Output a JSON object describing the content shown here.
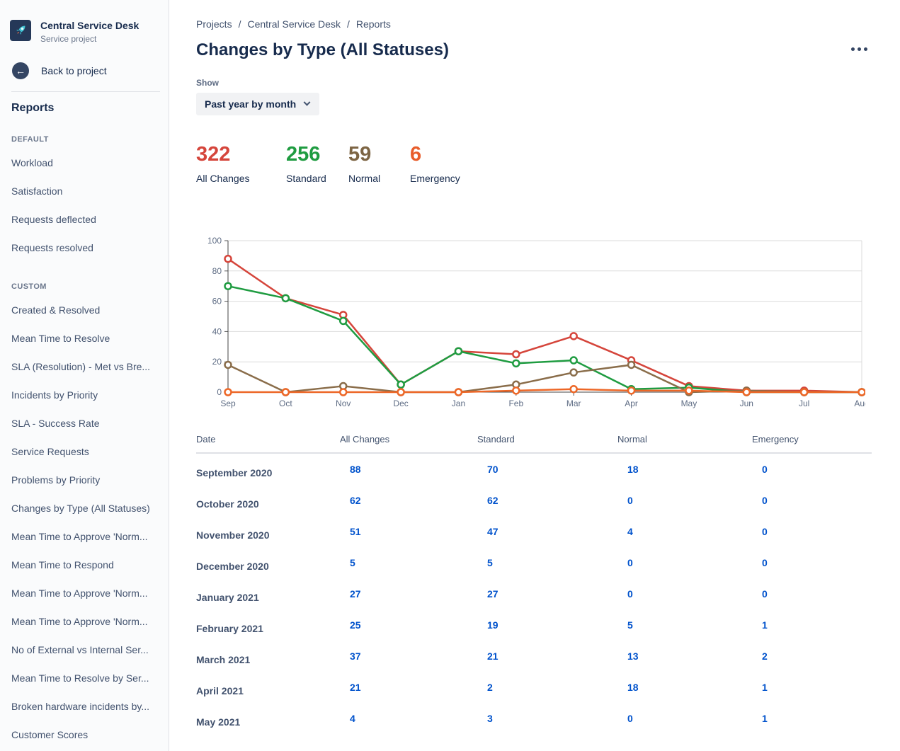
{
  "sidebar": {
    "project_name": "Central Service Desk",
    "project_type": "Service project",
    "back_label": "Back to project",
    "reports_heading": "Reports",
    "sections": [
      {
        "label": "DEFAULT",
        "items": [
          "Workload",
          "Satisfaction",
          "Requests deflected",
          "Requests resolved"
        ]
      },
      {
        "label": "CUSTOM",
        "items": [
          "Created & Resolved",
          "Mean Time to Resolve",
          "SLA (Resolution) - Met vs Bre...",
          "Incidents by Priority",
          "SLA - Success Rate",
          "Service Requests",
          "Problems by Priority",
          "Changes by Type (All Statuses)",
          "Mean Time to Approve 'Norm...",
          "Mean Time to Respond",
          "Mean Time to Approve 'Norm...",
          "Mean Time to Approve 'Norm...",
          "No of External vs Internal Ser...",
          "Mean Time to Resolve by Ser...",
          "Broken hardware incidents by...",
          "Customer Scores"
        ]
      }
    ]
  },
  "breadcrumb": [
    "Projects",
    "Central Service Desk",
    "Reports"
  ],
  "page_title": "Changes by Type (All Statuses)",
  "show": {
    "label": "Show",
    "selected": "Past year by month"
  },
  "stats": [
    {
      "value": "322",
      "label": "All Changes",
      "color": "#D5453B"
    },
    {
      "value": "256",
      "label": "Standard",
      "color": "#1F9C41"
    },
    {
      "value": "59",
      "label": "Normal",
      "color": "#7D6544"
    },
    {
      "value": "6",
      "label": "Emergency",
      "color": "#E85D2B"
    }
  ],
  "chart_data": {
    "type": "line",
    "x": [
      "Sep",
      "Oct",
      "Nov",
      "Dec",
      "Jan",
      "Feb",
      "Mar",
      "Apr",
      "May",
      "Jun",
      "Jul",
      "Aug"
    ],
    "series": [
      {
        "name": "All Changes",
        "color": "#D5453B",
        "values": [
          88,
          62,
          51,
          5,
          27,
          25,
          37,
          21,
          4,
          1,
          1,
          0
        ]
      },
      {
        "name": "Standard",
        "color": "#1F9C41",
        "values": [
          70,
          62,
          47,
          5,
          27,
          19,
          21,
          2,
          3,
          0,
          0,
          0
        ]
      },
      {
        "name": "Normal",
        "color": "#8A6D4A",
        "values": [
          18,
          0,
          4,
          0,
          0,
          5,
          13,
          18,
          0,
          1,
          0,
          0
        ]
      },
      {
        "name": "Emergency",
        "color": "#ED6727",
        "values": [
          0,
          0,
          0,
          0,
          0,
          1,
          2,
          1,
          1,
          0,
          0,
          0
        ]
      }
    ],
    "ylim": [
      0,
      100
    ],
    "yticks": [
      0,
      20,
      40,
      60,
      80,
      100
    ],
    "grid": true,
    "legend": "none"
  },
  "table": {
    "columns": [
      "Date",
      "All Changes",
      "Standard",
      "Normal",
      "Emergency"
    ],
    "rows": [
      {
        "date": "September 2020",
        "values": [
          "88",
          "70",
          "18",
          "0"
        ]
      },
      {
        "date": "October 2020",
        "values": [
          "62",
          "62",
          "0",
          "0"
        ]
      },
      {
        "date": "November 2020",
        "values": [
          "51",
          "47",
          "4",
          "0"
        ]
      },
      {
        "date": "December 2020",
        "values": [
          "5",
          "5",
          "0",
          "0"
        ]
      },
      {
        "date": "January 2021",
        "values": [
          "27",
          "27",
          "0",
          "0"
        ]
      },
      {
        "date": "February 2021",
        "values": [
          "25",
          "19",
          "5",
          "1"
        ]
      },
      {
        "date": "March 2021",
        "values": [
          "37",
          "21",
          "13",
          "2"
        ]
      },
      {
        "date": "April 2021",
        "values": [
          "21",
          "2",
          "18",
          "1"
        ]
      },
      {
        "date": "May 2021",
        "values": [
          "4",
          "3",
          "0",
          "1"
        ]
      }
    ]
  }
}
